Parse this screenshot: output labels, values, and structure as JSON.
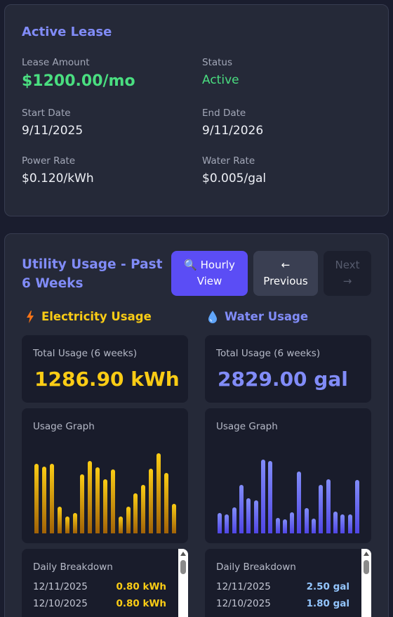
{
  "lease": {
    "title": "Active Lease",
    "amount_label": "Lease Amount",
    "amount": "$1200.00/mo",
    "status_label": "Status",
    "status": "Active",
    "start_label": "Start Date",
    "start_date": "9/11/2025",
    "end_label": "End Date",
    "end_date": "9/11/2026",
    "power_label": "Power Rate",
    "power_rate": "$0.120/kWh",
    "water_label": "Water Rate",
    "water_rate": "$0.005/gal"
  },
  "usage": {
    "title": "Utility Usage - Past 6 Weeks",
    "hourly_icon": "🔍",
    "hourly_label_1": "Hourly",
    "hourly_label_2": "View",
    "prev_arrow": "←",
    "prev_label": "Previous",
    "next_label": "Next",
    "next_arrow": "→"
  },
  "electricity": {
    "icon": "lightning-bolt-icon",
    "heading": "Electricity Usage",
    "total_label": "Total Usage (6 weeks)",
    "total": "1286.90 kWh",
    "graph_label": "Usage Graph",
    "breakdown_label": "Daily Breakdown",
    "breakdown": [
      {
        "date": "12/11/2025",
        "value": "0.80 kWh"
      },
      {
        "date": "12/10/2025",
        "value": "0.80 kWh"
      }
    ]
  },
  "water": {
    "icon": "water-drop-icon",
    "heading": "Water Usage",
    "total_label": "Total Usage (6 weeks)",
    "total": "2829.00 gal",
    "graph_label": "Usage Graph",
    "breakdown_label": "Daily Breakdown",
    "breakdown": [
      {
        "date": "12/11/2025",
        "value": "2.50 gal"
      },
      {
        "date": "12/10/2025",
        "value": "1.80 gal"
      }
    ]
  },
  "chart_data": [
    {
      "type": "bar",
      "series": [
        {
          "values": [
            80,
            77,
            80,
            31,
            19,
            23,
            68,
            83,
            76,
            62,
            73,
            19,
            31,
            46,
            56,
            74,
            92,
            69,
            34
          ]
        }
      ],
      "ylim": [
        0,
        100
      ]
    },
    {
      "type": "bar",
      "series": [
        {
          "values": [
            23,
            22,
            30,
            56,
            40,
            38,
            85,
            83,
            18,
            16,
            24,
            71,
            29,
            17,
            56,
            62,
            25,
            22,
            22,
            61
          ]
        }
      ],
      "ylim": [
        0,
        100
      ]
    }
  ]
}
